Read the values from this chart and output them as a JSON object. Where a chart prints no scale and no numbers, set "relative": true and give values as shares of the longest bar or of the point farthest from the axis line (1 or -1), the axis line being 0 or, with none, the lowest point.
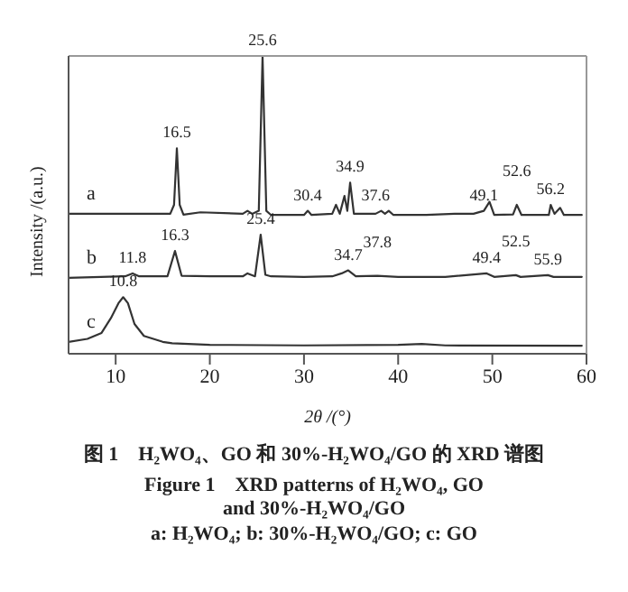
{
  "chart_data": {
    "type": "line",
    "title": "图 1　H₂WO₄、GO 和 30%-H₂WO₄/GO 的 XRD 谱图",
    "subtitle": "Figure 1　XRD patterns of H₂WO₄, GO and 30%-H₂WO₄/GO",
    "xlabel": "2θ /(°)",
    "ylabel": "Intensity /(a.u.)",
    "relative": true,
    "xlim": [
      5,
      60
    ],
    "xticks": [
      10,
      20,
      30,
      40,
      50,
      60
    ],
    "marker": "none",
    "series": [
      {
        "name": "a",
        "color": "#333333",
        "x": [
          5,
          15.8,
          16.2,
          16.5,
          16.8,
          17.2,
          19,
          23.5,
          24,
          24.5,
          25.2,
          25.6,
          26,
          26.5,
          30,
          30.4,
          30.8,
          33,
          33.4,
          33.8,
          34.3,
          34.6,
          34.9,
          35.3,
          37.6,
          38.2,
          38.6,
          39,
          39.5,
          43,
          46,
          48,
          49.1,
          49.7,
          50.2,
          52.2,
          52.6,
          53.1,
          56,
          56.2,
          56.6,
          57.2,
          57.6,
          59.5
        ],
        "values": [
          0.47,
          0.47,
          0.5,
          0.69,
          0.5,
          0.467,
          0.475,
          0.47,
          0.48,
          0.47,
          0.48,
          1.0,
          0.48,
          0.466,
          0.466,
          0.48,
          0.466,
          0.47,
          0.5,
          0.47,
          0.53,
          0.48,
          0.575,
          0.47,
          0.47,
          0.48,
          0.47,
          0.48,
          0.466,
          0.466,
          0.47,
          0.47,
          0.48,
          0.51,
          0.466,
          0.468,
          0.5,
          0.466,
          0.466,
          0.5,
          0.47,
          0.49,
          0.466,
          0.466
        ]
      },
      {
        "name": "b",
        "color": "#333333",
        "x": [
          5,
          11,
          11.8,
          12.5,
          15.5,
          16.3,
          17,
          20,
          23.5,
          24,
          24.8,
          25.4,
          25.9,
          26.5,
          30,
          33,
          34,
          34.7,
          35.5,
          37.8,
          40,
          45,
          49.4,
          50.2,
          52.5,
          53,
          55.9,
          56.5,
          59.5
        ],
        "values": [
          0.255,
          0.26,
          0.27,
          0.26,
          0.26,
          0.345,
          0.262,
          0.26,
          0.26,
          0.27,
          0.26,
          0.4,
          0.265,
          0.26,
          0.258,
          0.26,
          0.27,
          0.28,
          0.26,
          0.262,
          0.258,
          0.258,
          0.27,
          0.258,
          0.264,
          0.258,
          0.264,
          0.258,
          0.258
        ]
      },
      {
        "name": "c",
        "color": "#333333",
        "x": [
          5,
          7,
          8.5,
          9.5,
          10.3,
          10.8,
          11.3,
          12,
          13,
          15,
          16,
          20,
          30,
          40,
          42.5,
          45,
          59.5
        ],
        "values": [
          0.04,
          0.05,
          0.07,
          0.12,
          0.17,
          0.19,
          0.17,
          0.1,
          0.06,
          0.04,
          0.035,
          0.03,
          0.028,
          0.03,
          0.033,
          0.028,
          0.027
        ]
      }
    ],
    "annotations": [
      {
        "text": "16.5",
        "x": 16.5,
        "y": 0.69
      },
      {
        "text": "25.6",
        "x": 25.6,
        "y": 1.0
      },
      {
        "text": "30.4",
        "x": 30.4,
        "y": 0.48
      },
      {
        "text": "34.9",
        "x": 34.9,
        "y": 0.575
      },
      {
        "text": "37.6",
        "x": 37.6,
        "y": 0.48
      },
      {
        "text": "49.1",
        "x": 49.1,
        "y": 0.48
      },
      {
        "text": "52.6",
        "x": 52.6,
        "y": 0.5
      },
      {
        "text": "56.2",
        "x": 56.2,
        "y": 0.5
      },
      {
        "text": "11.8",
        "x": 11.8,
        "y": 0.27
      },
      {
        "text": "16.3",
        "x": 16.3,
        "y": 0.345
      },
      {
        "text": "25.4",
        "x": 25.4,
        "y": 0.4
      },
      {
        "text": "34.7",
        "x": 34.7,
        "y": 0.28
      },
      {
        "text": "37.8",
        "x": 37.8,
        "y": 0.262
      },
      {
        "text": "49.4",
        "x": 49.4,
        "y": 0.27
      },
      {
        "text": "52.5",
        "x": 52.5,
        "y": 0.264
      },
      {
        "text": "55.9",
        "x": 55.9,
        "y": 0.264
      },
      {
        "text": "10.8",
        "x": 10.8,
        "y": 0.19
      },
      "a: H₂WO₄;  b: 30%-H₂WO₄/GO;  c: GO"
    ]
  }
}
